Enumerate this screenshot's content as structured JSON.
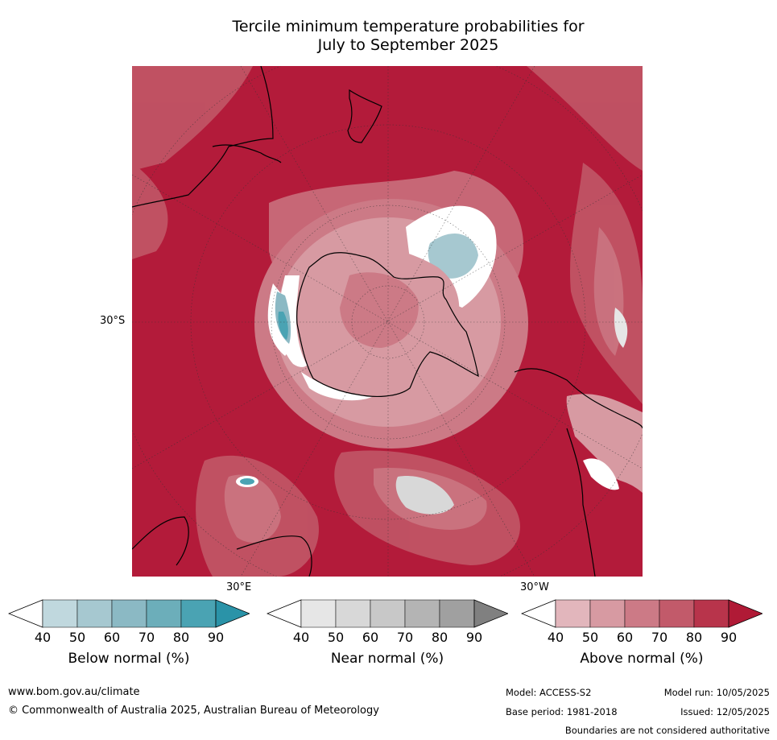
{
  "title_line1": "Tercile minimum temperature probabilities for",
  "title_line2": "July to September 2025",
  "map_labels": {
    "lat_30s": "30°S",
    "lon_30e": "30°E",
    "lon_30w": "30°W"
  },
  "colorbars": [
    {
      "label": "Below normal (%)",
      "ticks": [
        "40",
        "50",
        "60",
        "70",
        "80",
        "90"
      ],
      "colors": [
        "#ffffff",
        "#c0d8de",
        "#a6c8d0",
        "#8bb9c4",
        "#6caeba",
        "#4aa3b3",
        "#2a93a8"
      ]
    },
    {
      "label": "Near normal (%)",
      "ticks": [
        "40",
        "50",
        "60",
        "70",
        "80",
        "90"
      ],
      "colors": [
        "#ffffff",
        "#e6e6e6",
        "#d8d8d8",
        "#c8c8c8",
        "#b4b4b4",
        "#a0a0a0",
        "#808080"
      ]
    },
    {
      "label": "Above normal (%)",
      "ticks": [
        "40",
        "50",
        "60",
        "70",
        "80",
        "90"
      ],
      "colors": [
        "#ffffff",
        "#e2b6bc",
        "#d79aa2",
        "#cc7a86",
        "#c25a6a",
        "#b8344b",
        "#b01a36"
      ]
    }
  ],
  "footer": {
    "website": "www.bom.gov.au/climate",
    "copyright": "© Commonwealth of Australia 2025, Australian Bureau of Meteorology",
    "model": "Model: ACCESS-S2",
    "model_run": "Model run: 10/05/2025",
    "base_period": "Base period: 1981-2018",
    "issued": "Issued: 12/05/2025",
    "disclaimer": "Boundaries are not considered authoritative"
  },
  "colors": {
    "above_dominant": "#b31b3a"
  }
}
